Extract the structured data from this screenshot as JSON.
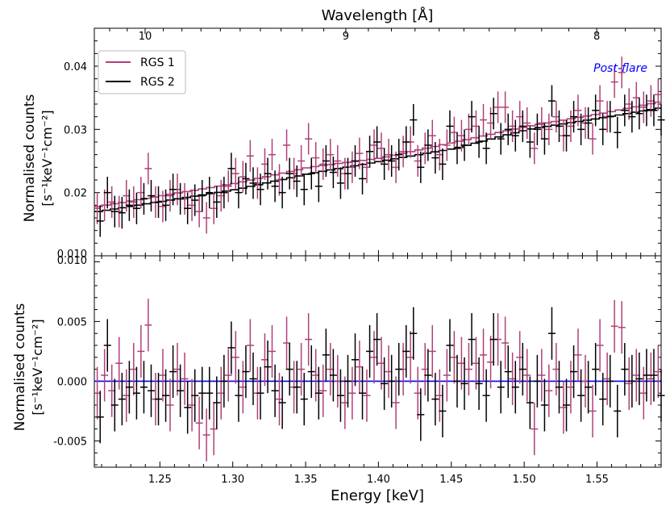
{
  "chart_data": {
    "type": "scatter",
    "x_axis": {
      "label": "Energy [keV]",
      "range": [
        1.205,
        1.594
      ],
      "ticks": [
        1.25,
        1.3,
        1.35,
        1.4,
        1.45,
        1.5,
        1.55
      ],
      "tick_labels": [
        "1.25",
        "1.30",
        "1.35",
        "1.40",
        "1.45",
        "1.50",
        "1.55"
      ]
    },
    "top_axis": {
      "label": "Wavelength [Å]",
      "ticks_angstrom": [
        10,
        9,
        8
      ],
      "tick_labels": [
        "10",
        "9",
        "8"
      ]
    },
    "panels": [
      {
        "name": "spectrum",
        "ylabel_line1": "Normalised counts",
        "ylabel_line2": "[s⁻¹keV⁻¹cm⁻²]",
        "ylim": [
          0.01,
          0.046
        ],
        "yticks": [
          0.01,
          0.02,
          0.03,
          0.04
        ],
        "ytick_labels": [
          "0.010",
          "0.02",
          "0.03",
          "0.04"
        ],
        "annotation": "Post-flare",
        "legend": {
          "placement": "upper-left",
          "entries": [
            {
              "label": "RGS 1",
              "color": "#b0407a"
            },
            {
              "label": "RGS 2",
              "color": "#000000"
            }
          ]
        }
      },
      {
        "name": "residuals",
        "ylabel_line1": "Normalised counts",
        "ylabel_line2": "[s⁻¹keV⁻¹cm⁻²]",
        "ylim": [
          -0.0072,
          0.0105
        ],
        "yticks": [
          -0.005,
          0.0,
          0.005
        ],
        "ytick_labels": [
          "-0.005",
          "0.000",
          "0.005"
        ],
        "top_tick_label": "0.010",
        "zero_line_color": "#0000ff"
      }
    ],
    "series": [
      {
        "name": "RGS 1",
        "color": "#b0407a",
        "x_halfwidth": 0.0025,
        "x": [
          1.207,
          1.212,
          1.217,
          1.222,
          1.227,
          1.232,
          1.237,
          1.242,
          1.247,
          1.252,
          1.257,
          1.262,
          1.267,
          1.272,
          1.277,
          1.282,
          1.287,
          1.292,
          1.297,
          1.302,
          1.307,
          1.312,
          1.317,
          1.322,
          1.327,
          1.332,
          1.337,
          1.342,
          1.347,
          1.352,
          1.357,
          1.362,
          1.367,
          1.372,
          1.377,
          1.382,
          1.387,
          1.392,
          1.397,
          1.402,
          1.407,
          1.412,
          1.417,
          1.422,
          1.427,
          1.432,
          1.437,
          1.442,
          1.447,
          1.452,
          1.457,
          1.462,
          1.467,
          1.472,
          1.477,
          1.482,
          1.487,
          1.492,
          1.497,
          1.502,
          1.507,
          1.512,
          1.517,
          1.522,
          1.527,
          1.532,
          1.537,
          1.542,
          1.547,
          1.552,
          1.557,
          1.562,
          1.567,
          1.572,
          1.577,
          1.582,
          1.587,
          1.592
        ],
        "y": [
          0.0175,
          0.018,
          0.0185,
          0.017,
          0.0195,
          0.0185,
          0.02,
          0.0238,
          0.0185,
          0.0178,
          0.0195,
          0.0205,
          0.019,
          0.018,
          0.017,
          0.016,
          0.0175,
          0.0195,
          0.021,
          0.023,
          0.0225,
          0.0258,
          0.0215,
          0.0245,
          0.026,
          0.022,
          0.0275,
          0.023,
          0.025,
          0.0285,
          0.0255,
          0.0245,
          0.026,
          0.025,
          0.023,
          0.024,
          0.0262,
          0.024,
          0.0275,
          0.027,
          0.026,
          0.024,
          0.0265,
          0.028,
          0.025,
          0.027,
          0.029,
          0.026,
          0.0275,
          0.0295,
          0.029,
          0.03,
          0.0305,
          0.0315,
          0.031,
          0.0335,
          0.0335,
          0.0305,
          0.032,
          0.031,
          0.027,
          0.031,
          0.03,
          0.032,
          0.029,
          0.0305,
          0.033,
          0.031,
          0.0285,
          0.0345,
          0.032,
          0.0375,
          0.039,
          0.034,
          0.035,
          0.0335,
          0.0345,
          0.0355
        ],
        "yerr": 0.0025,
        "residuals": [
          -0.001,
          0.0005,
          -0.0008,
          0.0015,
          -0.0012,
          0.001,
          0.0025,
          0.0047,
          -0.0015,
          0.0005,
          -0.002,
          0.001,
          0.0002,
          -0.002,
          -0.0035,
          -0.0045,
          -0.004,
          -0.001,
          0.0005,
          0.002,
          -0.0005,
          0.003,
          -0.001,
          0.0018,
          0.0025,
          -0.0015,
          0.0032,
          -0.0005,
          0.001,
          0.0035,
          0.0005,
          -0.0008,
          0.001,
          0.0,
          -0.0018,
          -0.001,
          0.0012,
          -0.0012,
          0.002,
          0.0015,
          0.0008,
          -0.0018,
          0.001,
          0.002,
          -0.001,
          0.001,
          0.0025,
          -0.0012,
          0.0005,
          0.002,
          0.0015,
          0.001,
          0.0015,
          0.0022,
          0.0016,
          0.0035,
          0.0032,
          0.0002,
          0.002,
          0.0005,
          -0.004,
          0.0005,
          -0.0008,
          0.001,
          -0.0022,
          -0.0005,
          0.0022,
          0.0,
          -0.0025,
          0.003,
          0.0002,
          0.0046,
          0.0045,
          -0.0002,
          0.0005,
          -0.001,
          0.0002,
          0.0008
        ],
        "residual_err": 0.0022
      },
      {
        "name": "RGS 2",
        "color": "#000000",
        "x_halfwidth": 0.0025,
        "x": [
          1.209,
          1.214,
          1.219,
          1.224,
          1.229,
          1.234,
          1.239,
          1.244,
          1.249,
          1.254,
          1.259,
          1.264,
          1.269,
          1.274,
          1.279,
          1.284,
          1.289,
          1.294,
          1.299,
          1.304,
          1.309,
          1.314,
          1.319,
          1.324,
          1.329,
          1.334,
          1.339,
          1.344,
          1.349,
          1.354,
          1.359,
          1.364,
          1.369,
          1.374,
          1.379,
          1.384,
          1.389,
          1.394,
          1.399,
          1.404,
          1.409,
          1.414,
          1.419,
          1.424,
          1.429,
          1.434,
          1.439,
          1.444,
          1.449,
          1.454,
          1.459,
          1.464,
          1.469,
          1.474,
          1.479,
          1.484,
          1.489,
          1.494,
          1.499,
          1.504,
          1.509,
          1.514,
          1.519,
          1.524,
          1.529,
          1.534,
          1.539,
          1.544,
          1.549,
          1.554,
          1.559,
          1.564,
          1.569,
          1.574,
          1.579,
          1.584,
          1.589,
          1.594
        ],
        "y": [
          0.0155,
          0.02,
          0.017,
          0.0168,
          0.018,
          0.0175,
          0.019,
          0.0195,
          0.0185,
          0.018,
          0.0205,
          0.019,
          0.0175,
          0.0188,
          0.0195,
          0.02,
          0.0185,
          0.02,
          0.0238,
          0.02,
          0.0222,
          0.0215,
          0.0205,
          0.023,
          0.021,
          0.02,
          0.023,
          0.0218,
          0.0205,
          0.023,
          0.021,
          0.025,
          0.0232,
          0.0215,
          0.023,
          0.025,
          0.0222,
          0.0265,
          0.028,
          0.0245,
          0.025,
          0.026,
          0.028,
          0.0315,
          0.024,
          0.0275,
          0.0255,
          0.0245,
          0.0305,
          0.027,
          0.0275,
          0.032,
          0.028,
          0.027,
          0.0325,
          0.0285,
          0.03,
          0.029,
          0.0305,
          0.028,
          0.03,
          0.0285,
          0.0345,
          0.0305,
          0.029,
          0.032,
          0.03,
          0.031,
          0.033,
          0.03,
          0.032,
          0.0295,
          0.033,
          0.032,
          0.0325,
          0.033,
          0.033,
          0.0315
        ],
        "yerr": 0.0025,
        "residuals": [
          -0.003,
          0.003,
          -0.002,
          -0.0015,
          -0.0005,
          -0.001,
          -0.0005,
          -0.0008,
          -0.0015,
          -0.0012,
          0.0008,
          -0.0008,
          -0.0022,
          -0.0012,
          -0.001,
          -0.001,
          -0.0018,
          0.0,
          0.0028,
          -0.0012,
          0.0008,
          0.0002,
          -0.001,
          0.0012,
          -0.0008,
          -0.0018,
          0.001,
          -0.0005,
          -0.0015,
          0.0008,
          -0.001,
          0.0022,
          0.0005,
          -0.0012,
          0.0,
          0.0018,
          -0.001,
          0.0025,
          0.0035,
          -0.0002,
          0.0,
          0.001,
          0.0025,
          0.004,
          -0.0028,
          0.0005,
          -0.0015,
          -0.0025,
          0.003,
          0.0,
          -0.0002,
          0.0035,
          -0.0002,
          -0.0012,
          0.0035,
          -0.0005,
          0.0008,
          -0.0005,
          0.001,
          -0.0018,
          0.0,
          -0.002,
          0.004,
          -0.0005,
          -0.002,
          0.0008,
          -0.0012,
          -0.0005,
          0.001,
          -0.0015,
          0.0,
          -0.0025,
          0.001,
          0.0,
          0.0002,
          0.0005,
          0.0005,
          -0.0012
        ],
        "residual_err": 0.0022
      }
    ],
    "model_curves": [
      {
        "name": "RGS 1 model",
        "color": "#b0407a",
        "x": [
          1.205,
          1.3,
          1.35,
          1.4,
          1.45,
          1.5,
          1.55,
          1.594
        ],
        "y": [
          0.0178,
          0.0215,
          0.024,
          0.0255,
          0.028,
          0.0305,
          0.0325,
          0.0345
        ]
      },
      {
        "name": "RGS 2 model",
        "color": "#000000",
        "x": [
          1.205,
          1.3,
          1.35,
          1.4,
          1.45,
          1.5,
          1.55,
          1.594
        ],
        "y": [
          0.017,
          0.0205,
          0.023,
          0.025,
          0.027,
          0.03,
          0.0318,
          0.0335
        ]
      }
    ]
  }
}
